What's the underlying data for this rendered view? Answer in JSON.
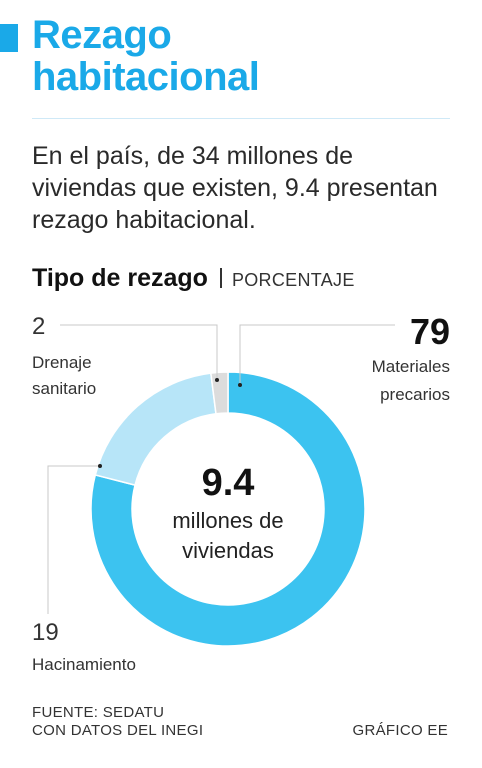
{
  "header": {
    "title_line1": "Rezago",
    "title_line2": "habitacional",
    "subtitle": "En el país, de 34 millones de viviendas que existen, 9.4 presentan rezago habitacional."
  },
  "section": {
    "title": "Tipo de rezago",
    "unit": "PORCENTAJE"
  },
  "chart_data": {
    "type": "pie",
    "donut": true,
    "center": {
      "value": "9.4",
      "label_line1": "millones de",
      "label_line2": "viviendas"
    },
    "slices": [
      {
        "key": "materiales",
        "value": 79,
        "display": "79",
        "label_line1": "Materiales",
        "label_line2": "precarios",
        "color": "#3cc3f0"
      },
      {
        "key": "hacinamiento",
        "value": 19,
        "display": "19",
        "label_line1": "Hacinamiento",
        "label_line2": "",
        "color": "#b7e5f8"
      },
      {
        "key": "drenaje",
        "value": 2,
        "display": "2",
        "label_line1": "Drenaje",
        "label_line2": "sanitario",
        "color": "#dcdcdc"
      }
    ]
  },
  "footer": {
    "source_line1": "FUENTE: SEDATU",
    "source_line2": "CON DATOS DEL INEGI",
    "credit": "GRÁFICO EE"
  },
  "colors": {
    "accent": "#1aa9e8",
    "leader": "#c8c8c8"
  }
}
